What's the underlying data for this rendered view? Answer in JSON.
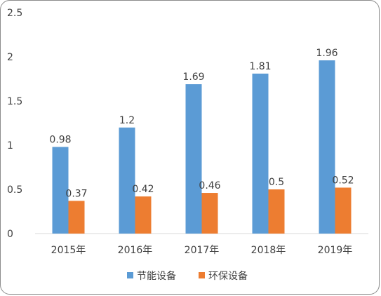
{
  "chart_data": {
    "type": "bar",
    "categories": [
      "2015年",
      "2016年",
      "2017年",
      "2018年",
      "2019年"
    ],
    "series": [
      {
        "name": "节能设备",
        "color": "#5b9bd5",
        "values": [
          0.98,
          1.2,
          1.69,
          1.81,
          1.96
        ],
        "labels": [
          "0.98",
          "1.2",
          "1.69",
          "1.81",
          "1.96"
        ]
      },
      {
        "name": "环保设备",
        "color": "#ed7d31",
        "values": [
          0.37,
          0.42,
          0.46,
          0.5,
          0.52
        ],
        "labels": [
          "0.37",
          "0.42",
          "0.46",
          "0.5",
          "0.52"
        ]
      }
    ],
    "ylim": [
      0,
      2.5
    ],
    "yticks": [
      "0",
      "0.5",
      "1",
      "1.5",
      "2",
      "2.5"
    ],
    "grid": false,
    "legend_position": "bottom"
  }
}
